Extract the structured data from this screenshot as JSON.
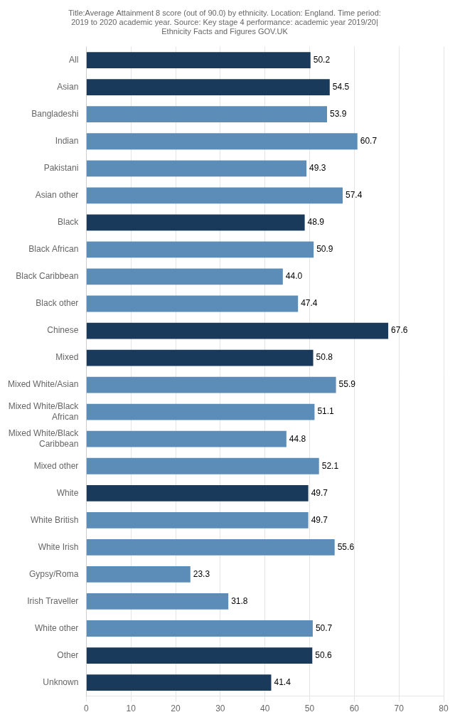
{
  "chart_data": {
    "type": "bar",
    "orientation": "horizontal",
    "title": "Title:Average Attainment 8 score (out of 90.0) by ethnicity. Location: England. Time period:\n2019 to 2020 academic year. Source: Key stage 4 performance: academic year 2019/20|\nEthnicity Facts and Figures GOV.UK",
    "categories": [
      "All",
      "Asian",
      "Bangladeshi",
      "Indian",
      "Pakistani",
      "Asian other",
      "Black",
      "Black African",
      "Black Caribbean",
      "Black other",
      "Chinese",
      "Mixed",
      "Mixed White/Asian",
      "Mixed White/Black\nAfrican",
      "Mixed White/Black\nCaribbean",
      "Mixed other",
      "White",
      "White British",
      "White Irish",
      "Gypsy/Roma",
      "Irish Traveller",
      "White other",
      "Other",
      "Unknown"
    ],
    "values": [
      50.2,
      54.5,
      53.9,
      60.7,
      49.3,
      57.4,
      48.9,
      50.9,
      44.0,
      47.4,
      67.6,
      50.8,
      55.9,
      51.1,
      44.8,
      52.1,
      49.7,
      49.7,
      55.6,
      23.3,
      31.8,
      50.7,
      50.6,
      41.4
    ],
    "value_labels": [
      "50.2",
      "54.5",
      "53.9",
      "60.7",
      "49.3",
      "57.4",
      "48.9",
      "50.9",
      "44.0",
      "47.4",
      "67.6",
      "50.8",
      "55.9",
      "51.1",
      "44.8",
      "52.1",
      "49.7",
      "49.7",
      "55.6",
      "23.3",
      "31.8",
      "50.7",
      "50.6",
      "41.4"
    ],
    "colors": [
      "#1a3a5c",
      "#1a3a5c",
      "#5b8db8",
      "#5b8db8",
      "#5b8db8",
      "#5b8db8",
      "#1a3a5c",
      "#5b8db8",
      "#5b8db8",
      "#5b8db8",
      "#1a3a5c",
      "#1a3a5c",
      "#5b8db8",
      "#5b8db8",
      "#5b8db8",
      "#5b8db8",
      "#1a3a5c",
      "#5b8db8",
      "#5b8db8",
      "#5b8db8",
      "#5b8db8",
      "#5b8db8",
      "#1a3a5c",
      "#1a3a5c"
    ],
    "xlim": [
      0,
      80
    ],
    "xticks": [
      0,
      10,
      20,
      30,
      40,
      50,
      60,
      70,
      80
    ],
    "grid": true,
    "data_labels": true
  }
}
